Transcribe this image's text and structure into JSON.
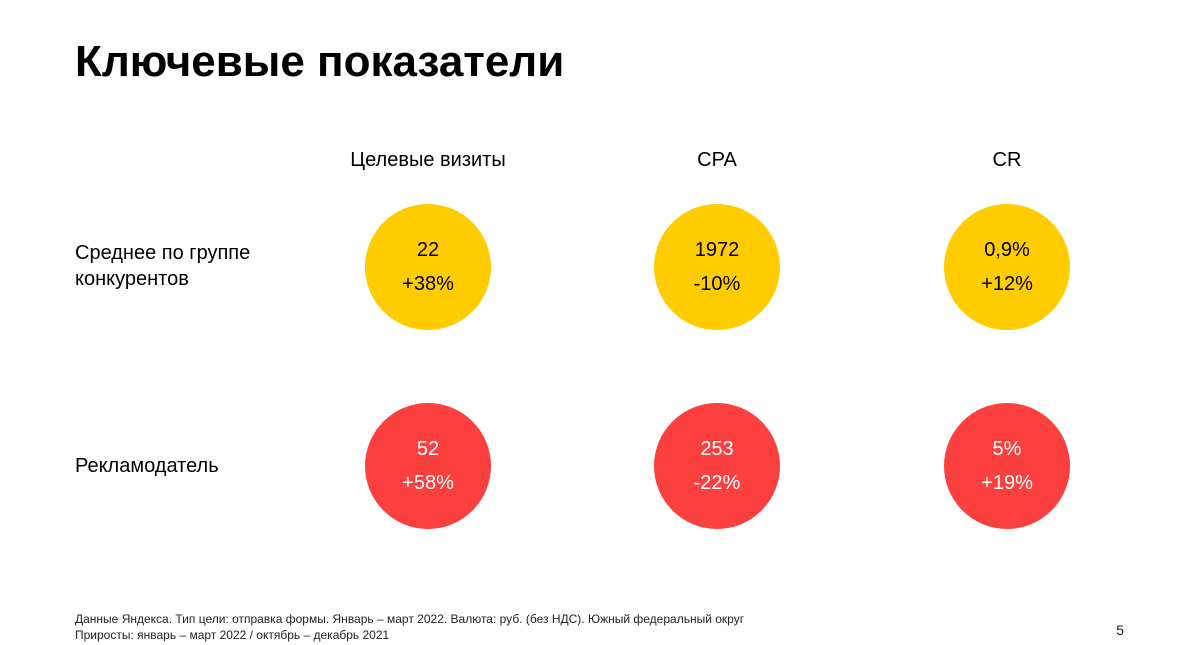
{
  "title": "Ключевые показатели",
  "columns": [
    "Целевые визиты",
    "CPA",
    "CR"
  ],
  "rows": [
    {
      "label_lines": [
        "Среднее по группе",
        "конкурентов"
      ],
      "color": "#ffcc00",
      "cells": [
        {
          "value": "22",
          "change": "+38%"
        },
        {
          "value": "1972",
          "change": "-10%"
        },
        {
          "value": "0,9%",
          "change": "+12%"
        }
      ]
    },
    {
      "label_lines": [
        "Рекламодатель"
      ],
      "color": "#fc3f3f",
      "cells": [
        {
          "value": "52",
          "change": "+58%"
        },
        {
          "value": "253",
          "change": "-22%"
        },
        {
          "value": "5%",
          "change": "+19%"
        }
      ]
    }
  ],
  "footnote": [
    "Данные Яндекса. Тип цели: отправка формы. Январь – март 2022. Валюта: руб. (без НДС). Южный федеральный округ",
    "Приросты: январь – март 2022 / октябрь – декабрь 2021"
  ],
  "page_number": "5"
}
